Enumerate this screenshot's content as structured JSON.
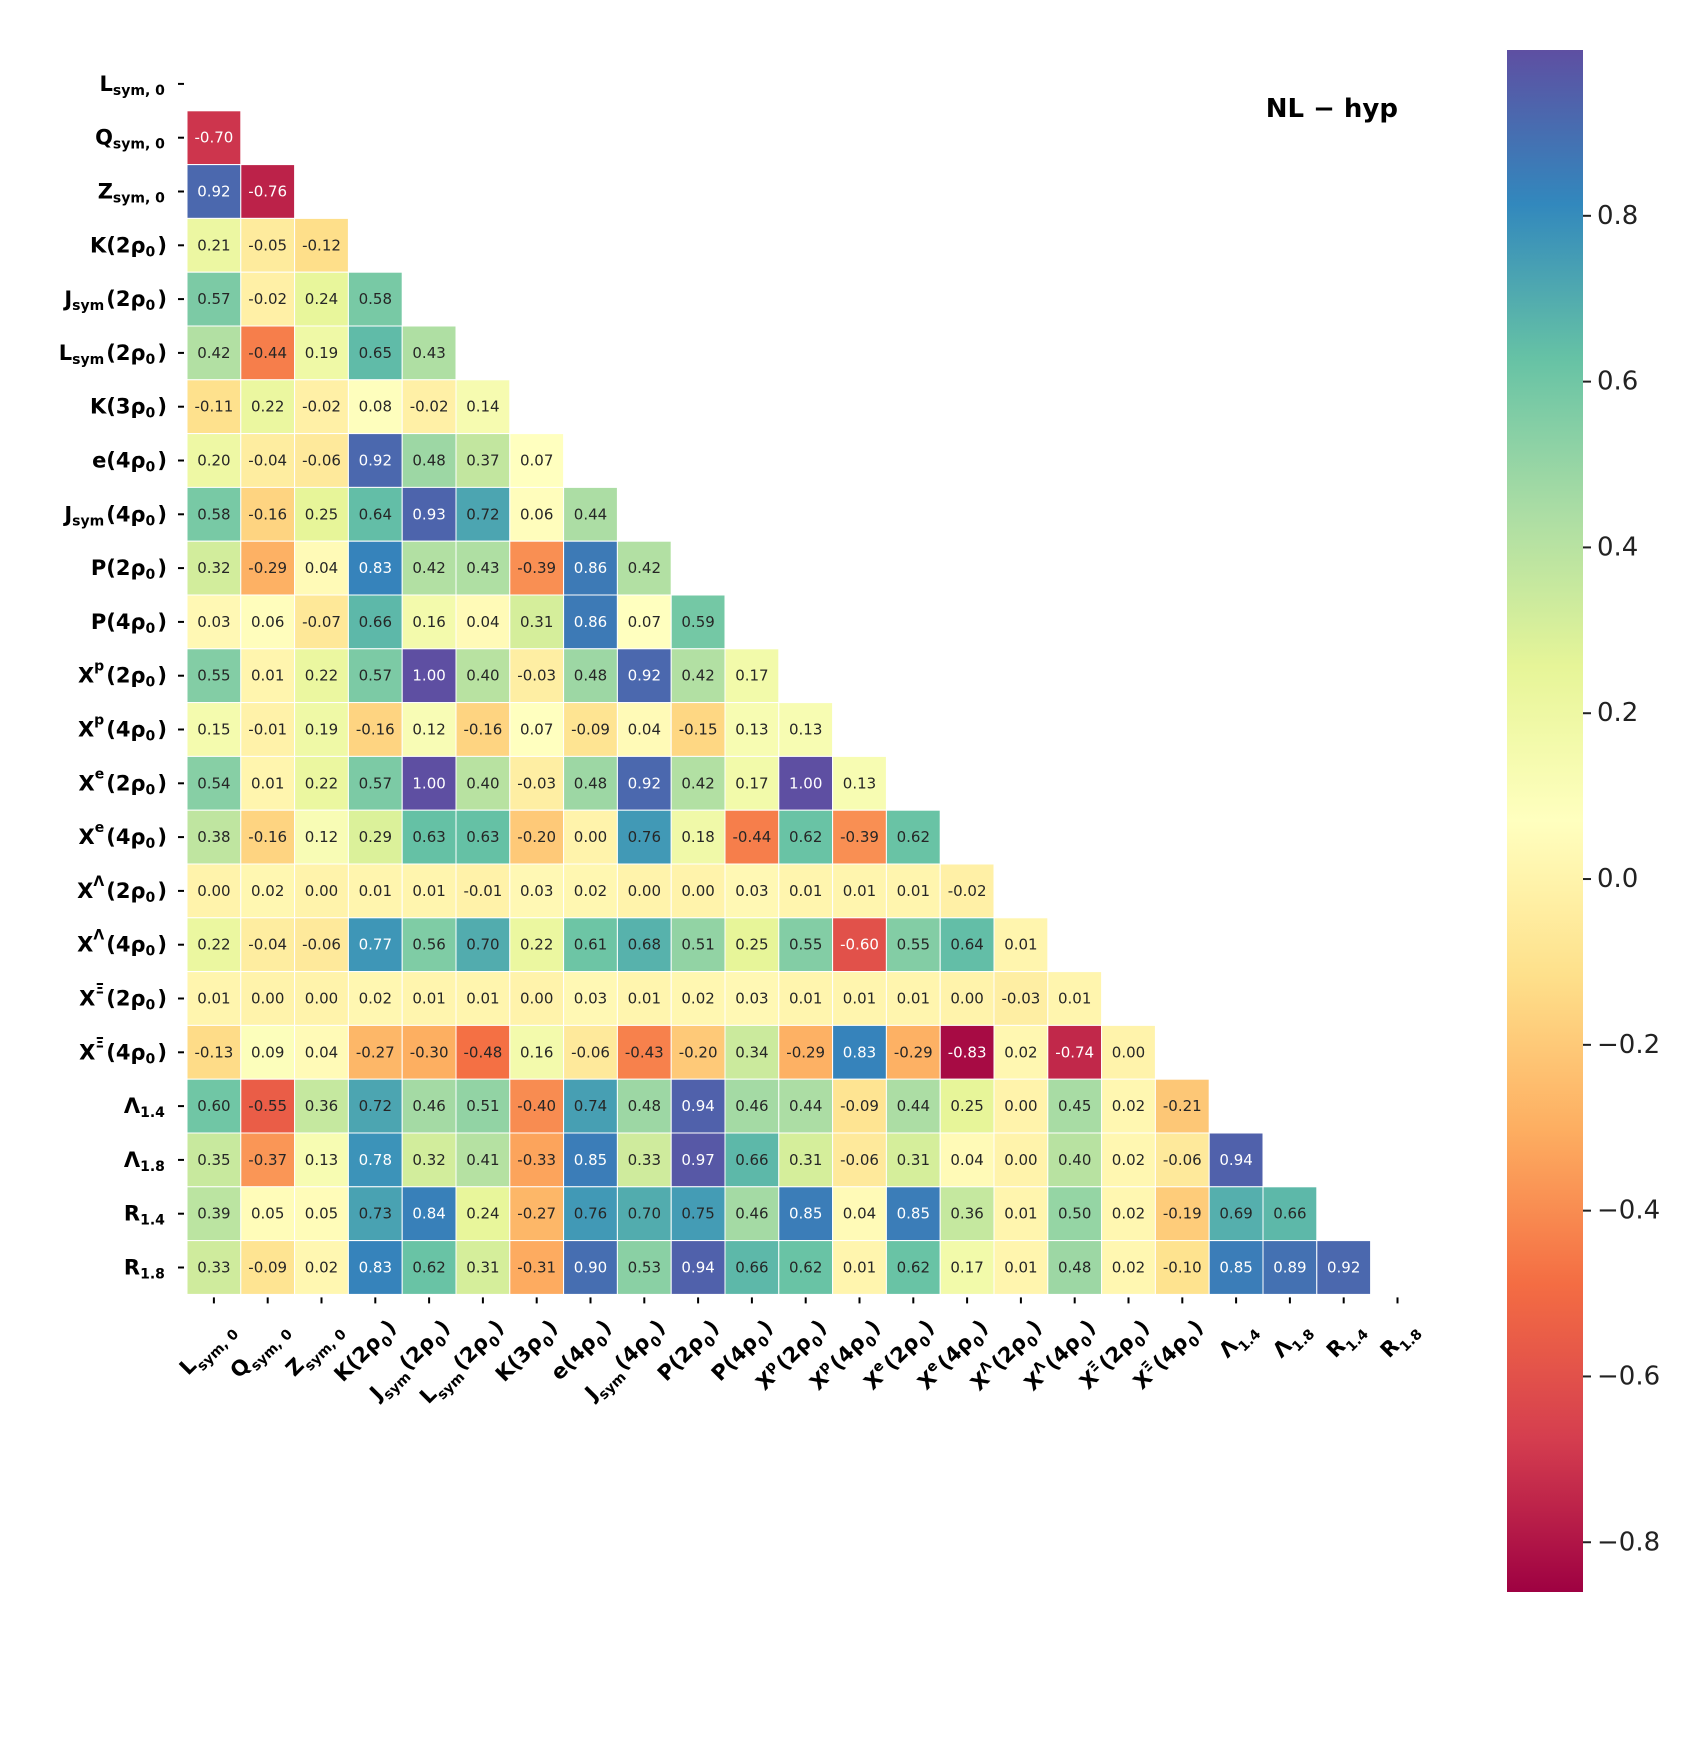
{
  "chart_data": {
    "type": "heatmap",
    "title": "NL − hyp",
    "colormap": "Spectral",
    "vmin": -0.86,
    "vmax": 1.0,
    "mask": "upper-triangle-including-diagonal",
    "row_labels": [
      {
        "base": "L",
        "sub": "sym, 0",
        "rest": ""
      },
      {
        "base": "Q",
        "sub": "sym, 0",
        "rest": ""
      },
      {
        "base": "Z",
        "sub": "sym, 0",
        "rest": ""
      },
      {
        "base": "K(2ρ",
        "sub": "0",
        "rest": ")"
      },
      {
        "base": "J",
        "sub": "sym",
        "rest": "(2ρ",
        "sub2": "0",
        "rest2": ")"
      },
      {
        "base": "L",
        "sub": "sym",
        "rest": "(2ρ",
        "sub2": "0",
        "rest2": ")"
      },
      {
        "base": "K(3ρ",
        "sub": "0",
        "rest": ")"
      },
      {
        "base": "e(4ρ",
        "sub": "0",
        "rest": ")"
      },
      {
        "base": "J",
        "sub": "sym",
        "rest": "(4ρ",
        "sub2": "0",
        "rest2": ")"
      },
      {
        "base": "P(2ρ",
        "sub": "0",
        "rest": ")"
      },
      {
        "base": "P(4ρ",
        "sub": "0",
        "rest": ")"
      },
      {
        "base": "X",
        "sup": "p",
        "rest": "(2ρ",
        "sub2": "0",
        "rest2": ")"
      },
      {
        "base": "X",
        "sup": "p",
        "rest": "(4ρ",
        "sub2": "0",
        "rest2": ")"
      },
      {
        "base": "X",
        "sup": "e",
        "rest": "(2ρ",
        "sub2": "0",
        "rest2": ")"
      },
      {
        "base": "X",
        "sup": "e",
        "rest": "(4ρ",
        "sub2": "0",
        "rest2": ")"
      },
      {
        "base": "X",
        "sup": "Λ",
        "rest": "(2ρ",
        "sub2": "0",
        "rest2": ")"
      },
      {
        "base": "X",
        "sup": "Λ",
        "rest": "(4ρ",
        "sub2": "0",
        "rest2": ")"
      },
      {
        "base": "X",
        "sup": "Ξ",
        "rest": "(2ρ",
        "sub2": "0",
        "rest2": ")"
      },
      {
        "base": "X",
        "sup": "Ξ",
        "rest": "(4ρ",
        "sub2": "0",
        "rest2": ")"
      },
      {
        "base": "Λ",
        "sub": "1.4",
        "rest": ""
      },
      {
        "base": "Λ",
        "sub": "1.8",
        "rest": ""
      },
      {
        "base": "R",
        "sub": "1.4",
        "rest": ""
      },
      {
        "base": "R",
        "sub": "1.8",
        "rest": ""
      }
    ],
    "values": [
      [],
      [
        -0.7
      ],
      [
        0.92,
        -0.76
      ],
      [
        0.21,
        -0.05,
        -0.12
      ],
      [
        0.57,
        -0.02,
        0.24,
        0.58
      ],
      [
        0.42,
        -0.44,
        0.19,
        0.65,
        0.43
      ],
      [
        -0.11,
        0.22,
        -0.02,
        0.08,
        -0.02,
        0.14
      ],
      [
        0.2,
        -0.04,
        -0.06,
        0.92,
        0.48,
        0.37,
        0.07
      ],
      [
        0.58,
        -0.16,
        0.25,
        0.64,
        0.93,
        0.72,
        0.06,
        0.44
      ],
      [
        0.32,
        -0.29,
        0.04,
        0.83,
        0.42,
        0.43,
        -0.39,
        0.86,
        0.42
      ],
      [
        0.03,
        0.06,
        -0.07,
        0.66,
        0.16,
        0.04,
        0.31,
        0.86,
        0.07,
        0.59
      ],
      [
        0.55,
        0.01,
        0.22,
        0.57,
        1.0,
        0.4,
        -0.03,
        0.48,
        0.92,
        0.42,
        0.17
      ],
      [
        0.15,
        -0.01,
        0.19,
        -0.16,
        0.12,
        -0.16,
        0.07,
        -0.09,
        0.04,
        -0.15,
        0.13,
        0.13
      ],
      [
        0.54,
        0.01,
        0.22,
        0.57,
        1.0,
        0.4,
        -0.03,
        0.48,
        0.92,
        0.42,
        0.17,
        1.0,
        0.13
      ],
      [
        0.38,
        -0.16,
        0.12,
        0.29,
        0.63,
        0.63,
        -0.2,
        0.0,
        0.76,
        0.18,
        -0.44,
        0.62,
        -0.39,
        0.62
      ],
      [
        -0.0,
        0.02,
        -0.0,
        0.01,
        0.01,
        -0.01,
        0.03,
        0.02,
        0.0,
        0.0,
        0.03,
        0.01,
        0.01,
        0.01,
        -0.02
      ],
      [
        0.22,
        -0.04,
        -0.06,
        0.77,
        0.56,
        0.7,
        0.22,
        0.61,
        0.68,
        0.51,
        0.25,
        0.55,
        -0.6,
        0.55,
        0.64,
        0.01
      ],
      [
        0.01,
        0.0,
        0.0,
        0.02,
        0.01,
        0.01,
        0.0,
        0.03,
        0.01,
        0.02,
        0.03,
        0.01,
        0.01,
        0.01,
        -0.0,
        -0.03,
        0.01
      ],
      [
        -0.13,
        0.09,
        0.04,
        -0.27,
        -0.3,
        -0.48,
        0.16,
        -0.06,
        -0.43,
        -0.2,
        0.34,
        -0.29,
        0.83,
        -0.29,
        -0.83,
        0.02,
        -0.74,
        0.0
      ],
      [
        0.6,
        -0.55,
        0.36,
        0.72,
        0.46,
        0.51,
        -0.4,
        0.74,
        0.48,
        0.94,
        0.46,
        0.44,
        -0.09,
        0.44,
        0.25,
        -0.0,
        0.45,
        0.02,
        -0.21
      ],
      [
        0.35,
        -0.37,
        0.13,
        0.78,
        0.32,
        0.41,
        -0.33,
        0.85,
        0.33,
        0.97,
        0.66,
        0.31,
        -0.06,
        0.31,
        0.04,
        0.0,
        0.4,
        0.02,
        -0.06,
        0.94
      ],
      [
        0.39,
        0.05,
        0.05,
        0.73,
        0.84,
        0.24,
        -0.27,
        0.76,
        0.7,
        0.75,
        0.46,
        0.85,
        0.04,
        0.85,
        0.36,
        0.01,
        0.5,
        0.02,
        -0.19,
        0.69,
        0.66
      ],
      [
        0.33,
        -0.09,
        0.02,
        0.83,
        0.62,
        0.31,
        -0.31,
        0.9,
        0.53,
        0.94,
        0.66,
        0.62,
        0.01,
        0.62,
        0.17,
        0.01,
        0.48,
        0.02,
        -0.1,
        0.85,
        0.89,
        0.92
      ]
    ],
    "colorbar": {
      "ticks": [
        0.8,
        0.6,
        0.4,
        0.2,
        0.0,
        -0.2,
        -0.4,
        -0.6,
        -0.8
      ],
      "tick_labels": [
        "0.8",
        "0.6",
        "0.4",
        "0.2",
        "0.0",
        "−0.2",
        "−0.4",
        "−0.6",
        "−0.8"
      ]
    }
  }
}
